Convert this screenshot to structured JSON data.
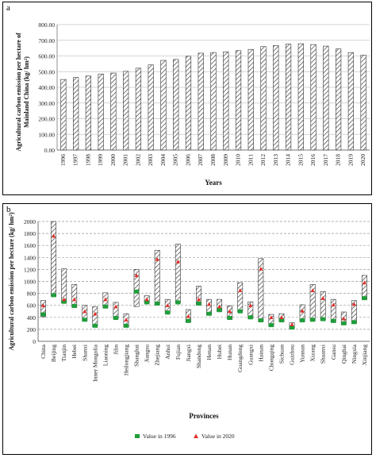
{
  "panels": {
    "a_label": "a",
    "b_label": "b"
  },
  "chart_data": [
    {
      "type": "bar",
      "title": "",
      "xlabel": "Years",
      "ylabel": "Agricultural carbon emission per hectare of Mainland China (kg/ hm²)",
      "ylim": [
        0,
        800
      ],
      "yticks": [
        "0.00",
        "100.00",
        "200.00",
        "300.00",
        "400.00",
        "500.00",
        "600.00",
        "700.00",
        "800.00"
      ],
      "grid": true,
      "categories": [
        "1996",
        "1997",
        "1998",
        "1999",
        "2000",
        "2001",
        "2002",
        "2003",
        "2004",
        "2005",
        "2006",
        "2007",
        "2008",
        "2009",
        "2010",
        "2011",
        "2012",
        "2013",
        "2014",
        "2015",
        "2016",
        "2017",
        "2018",
        "2019",
        "2020"
      ],
      "values": [
        450,
        463,
        472,
        485,
        491,
        502,
        522,
        543,
        572,
        578,
        598,
        618,
        622,
        626,
        634,
        642,
        660,
        667,
        676,
        678,
        673,
        663,
        645,
        622,
        605
      ]
    },
    {
      "type": "bar",
      "title": "",
      "xlabel": "Provinces",
      "ylabel": "Agricultural carbon emission per hectare (kg/ hm²)",
      "ylim": [
        0,
        2000
      ],
      "yticks": [
        "0",
        "200",
        "400",
        "600",
        "800",
        "1000",
        "1200",
        "1400",
        "1600",
        "1800",
        "2000"
      ],
      "grid": true,
      "legend_position": "bottom",
      "categories": [
        "China",
        "Beijing",
        "Tianjin",
        "Hebei",
        "Shanxi",
        "Inner Mongolia",
        "Liaoning",
        "Jilin",
        "Heilongjiang",
        "Shanghai",
        "Jiangsu",
        "Zhejiang",
        "Anhui",
        "Fujian",
        "Jiangxi",
        "Shandong",
        "Henan",
        "Hubei",
        "Hunan",
        "Guangdong",
        "Guangxi",
        "Hainan",
        "Chongqing",
        "Sichuan",
        "Guizhou",
        "Yunnan",
        "Xizang",
        "Shaanxi",
        "Gansu",
        "Qinghai",
        "Ningxia",
        "Xinjiang"
      ],
      "series": [
        {
          "name": "Value in 1996",
          "color": "#1f9e3a",
          "values": [
            450,
            770,
            660,
            590,
            360,
            260,
            580,
            390,
            260,
            830,
            650,
            630,
            480,
            650,
            340,
            630,
            460,
            520,
            390,
            500,
            400,
            350,
            270,
            350,
            230,
            350,
            360,
            370,
            340,
            300,
            320,
            720
          ]
        },
        {
          "name": "Value in 2020",
          "color": "#e0302a",
          "values": [
            600,
            1760,
            700,
            700,
            500,
            460,
            700,
            580,
            360,
            1100,
            700,
            1370,
            600,
            1330,
            420,
            700,
            620,
            580,
            500,
            850,
            600,
            1210,
            400,
            400,
            280,
            510,
            850,
            720,
            610,
            380,
            620,
            980
          ]
        }
      ],
      "range_extents": {
        "top": [
          680,
          2000,
          1210,
          950,
          600,
          580,
          810,
          650,
          460,
          1200,
          760,
          1520,
          700,
          1620,
          530,
          920,
          700,
          700,
          590,
          980,
          660,
          1380,
          450,
          460,
          310,
          610,
          950,
          830,
          700,
          490,
          680,
          1100
        ],
        "bottom": [
          410,
          750,
          640,
          570,
          340,
          240,
          560,
          380,
          240,
          580,
          640,
          610,
          470,
          640,
          320,
          610,
          440,
          500,
          370,
          490,
          380,
          330,
          250,
          330,
          210,
          330,
          340,
          350,
          320,
          280,
          300,
          700
        ]
      }
    }
  ],
  "colors": {
    "hatch": "#555555",
    "grid": "#c8c8c8"
  }
}
